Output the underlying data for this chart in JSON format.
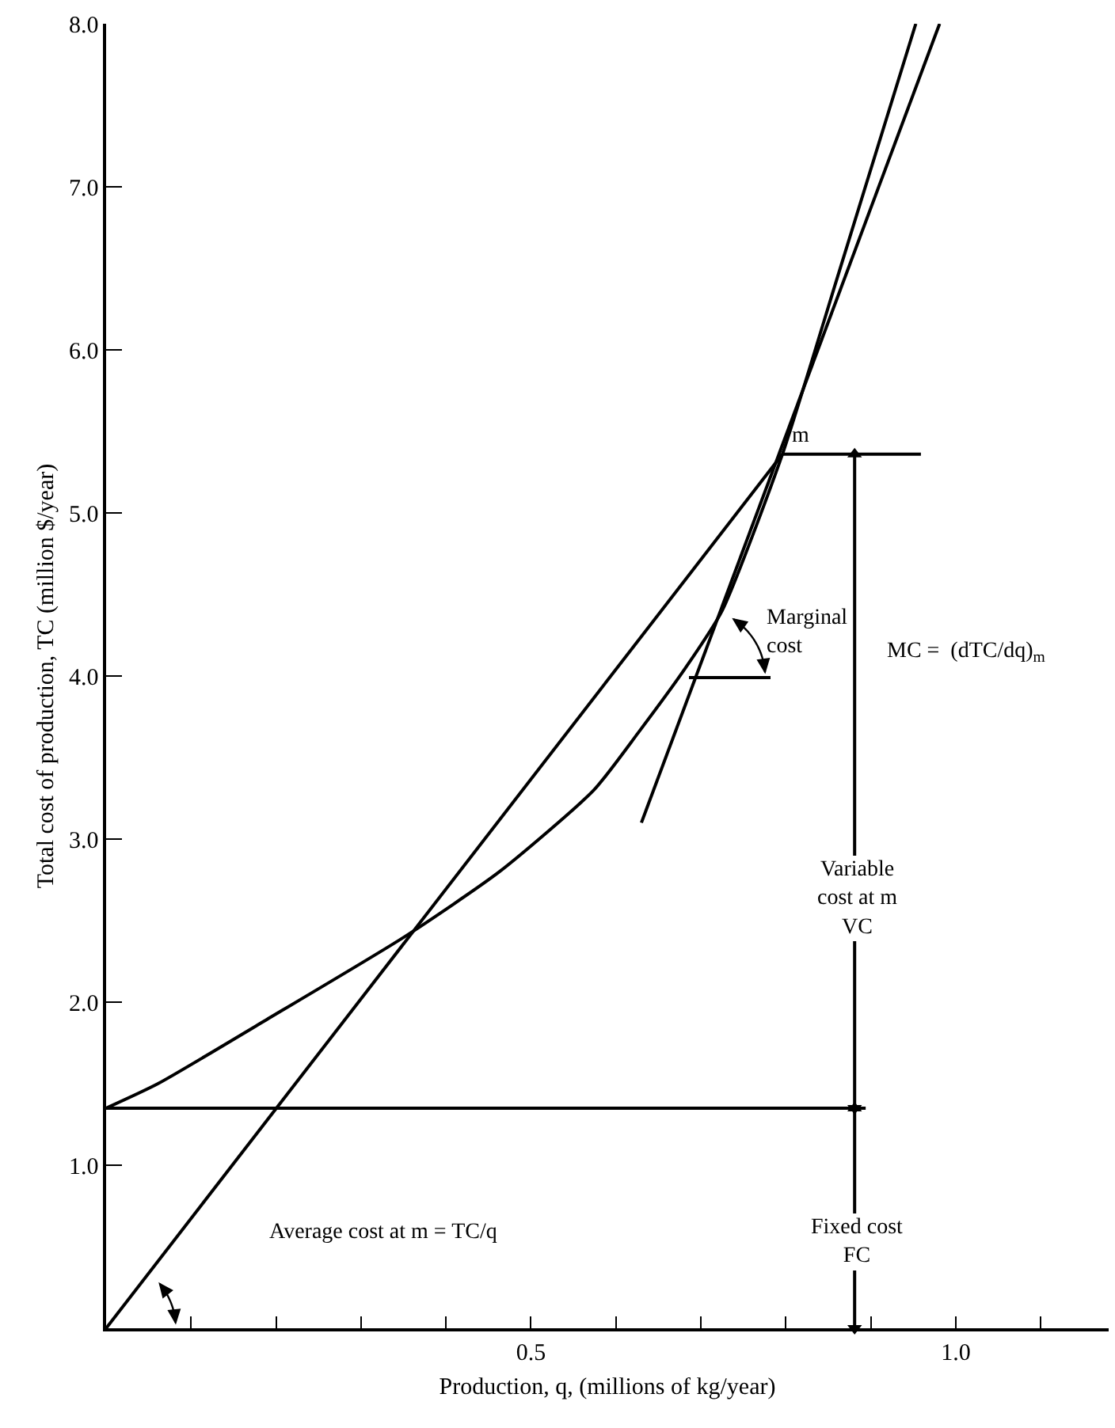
{
  "chart_data": {
    "type": "line",
    "xlabel": "Production, q, (millions of kg/year)",
    "ylabel": "Total cost of production, TC (million $/year)",
    "xlim": [
      0,
      1.18
    ],
    "ylim": [
      0,
      8.0
    ],
    "xticks": [
      {
        "value": 0.1,
        "label": null
      },
      {
        "value": 0.2,
        "label": null
      },
      {
        "value": 0.3,
        "label": null
      },
      {
        "value": 0.4,
        "label": null
      },
      0.5,
      {
        "value": 0.6,
        "label": null
      },
      {
        "value": 0.7,
        "label": null
      },
      {
        "value": 0.8,
        "label": null
      },
      {
        "value": 0.9,
        "label": null
      },
      {
        "value": 1.0,
        "label": "1.0"
      },
      {
        "value": 1.1,
        "label": null
      }
    ],
    "yticks": [
      {
        "value": 1,
        "label": "1.0"
      },
      {
        "value": 2,
        "label": "2.0"
      },
      {
        "value": 3,
        "label": "3.0"
      },
      {
        "value": 4,
        "label": "4.0"
      },
      {
        "value": 5,
        "label": "5.0"
      },
      {
        "value": 6,
        "label": "6.0"
      },
      {
        "value": 7,
        "label": "7.0"
      },
      {
        "value": 8,
        "label": "8.0"
      }
    ],
    "marker": "none",
    "series": [
      {
        "color": "#000000",
        "x": [
          0,
          0.061,
          0.188,
          0.351,
          0.463,
          0.574,
          0.626,
          0.682,
          0.725,
          0.796,
          0.861,
          0.953
        ],
        "values": [
          1.35,
          1.5,
          1.89,
          2.4,
          2.8,
          3.3,
          3.65,
          4.05,
          4.4,
          5.36,
          6.45,
          8.0
        ]
      },
      {
        "color": "#000000",
        "x": [
          0,
          0.796
        ],
        "values": [
          0,
          5.36
        ]
      },
      {
        "color": "#000000",
        "x": [
          0.63,
          0.981
        ],
        "values": [
          3.1,
          8.0
        ]
      },
      {
        "color": "#000000",
        "x": [
          0,
          0.894
        ],
        "values": [
          1.35,
          1.35
        ]
      },
      {
        "color": "#000000",
        "x": [
          0.796,
          0.959
        ],
        "values": [
          5.36,
          5.36
        ]
      },
      {
        "color": "#000000",
        "x": [
          0.686,
          0.782
        ],
        "values": [
          3.99,
          3.99
        ]
      },
      {
        "color": "#000000",
        "x": [
          0.881,
          0.881
        ],
        "values": [
          1.35,
          5.36
        ],
        "marker": "triangle"
      },
      {
        "color": "#000000",
        "x": [
          0.881,
          0.881
        ],
        "values": [
          0,
          1.35
        ],
        "marker": "triangle"
      }
    ],
    "annotations": [
      {
        "text": "m",
        "x": 0.796,
        "y": 5.36
      },
      "Marginal\ncost",
      "MC =  (dTC/dq)$_{m}$",
      "Variable\ncost at m\nVC",
      "Fixed cost\nFC",
      "Average cost at m = TC/q"
    ]
  }
}
